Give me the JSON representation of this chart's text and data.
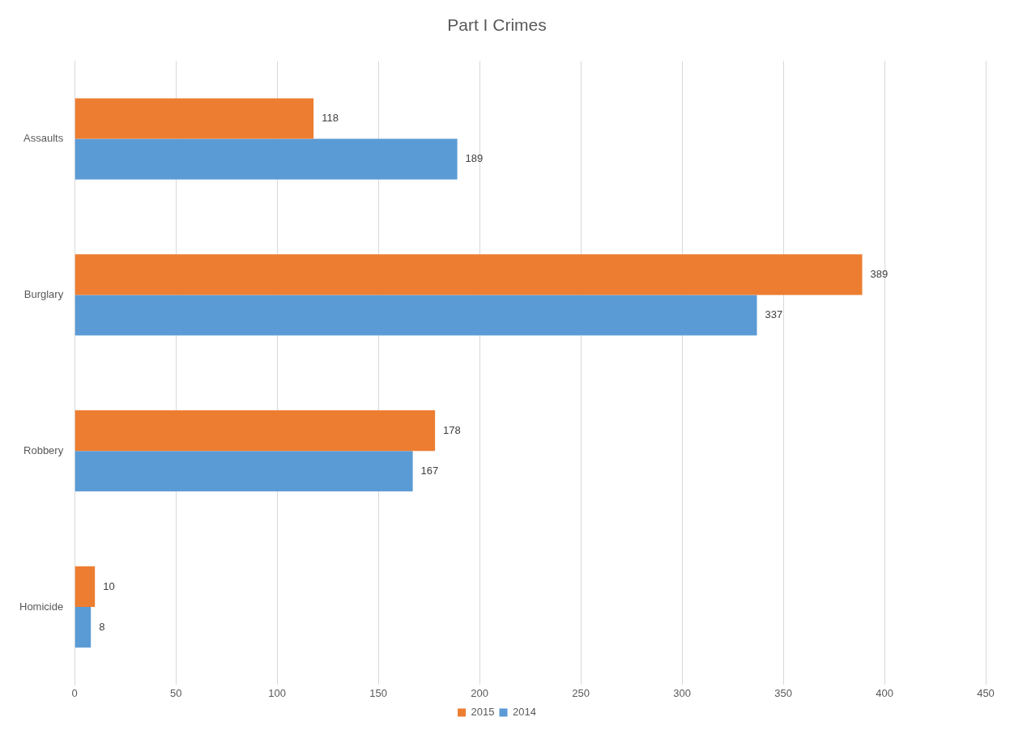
{
  "chart_data": {
    "type": "bar",
    "orientation": "horizontal",
    "title": "Part I Crimes",
    "categories": [
      "Assaults",
      "Burglary",
      "Robbery",
      "Homicide"
    ],
    "series": [
      {
        "name": "2015",
        "color": "#ed7d31",
        "values": [
          118,
          389,
          178,
          10
        ]
      },
      {
        "name": "2014",
        "color": "#5b9bd5",
        "values": [
          189,
          337,
          167,
          8
        ]
      }
    ],
    "xlim": [
      0,
      450
    ],
    "xticks": [
      0,
      50,
      100,
      150,
      200,
      250,
      300,
      350,
      400,
      450
    ],
    "grid": "x",
    "legend": "bottom",
    "data_labels": true
  }
}
